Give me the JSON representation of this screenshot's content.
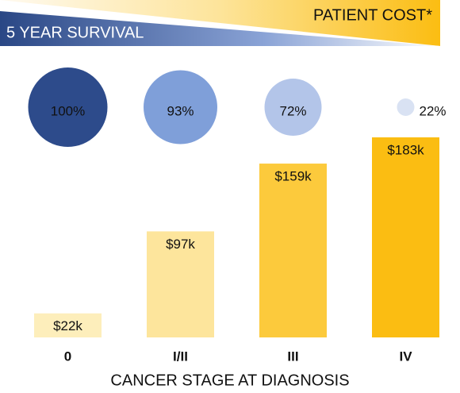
{
  "chart_data": {
    "type": "bar",
    "x_label": "CANCER STAGE AT DIAGNOSIS",
    "categories": [
      "0",
      "I/II",
      "III",
      "IV"
    ],
    "series": [
      {
        "name": "PATIENT COST*",
        "values": [
          22,
          97,
          159,
          183
        ],
        "value_labels": [
          "$22k",
          "$97k",
          "$159k",
          "$183k"
        ],
        "colors": [
          "#fdeebb",
          "#fde59c",
          "#fcca3c",
          "#fbbd12"
        ]
      },
      {
        "name": "5 YEAR SURVIVAL",
        "values": [
          100,
          93,
          72,
          22
        ],
        "value_labels": [
          "100%",
          "93%",
          "72%",
          "22%"
        ],
        "colors": [
          "#2d4b8b",
          "#7f9fd9",
          "#b3c5e9",
          "#d9e2f3"
        ]
      }
    ]
  }
}
